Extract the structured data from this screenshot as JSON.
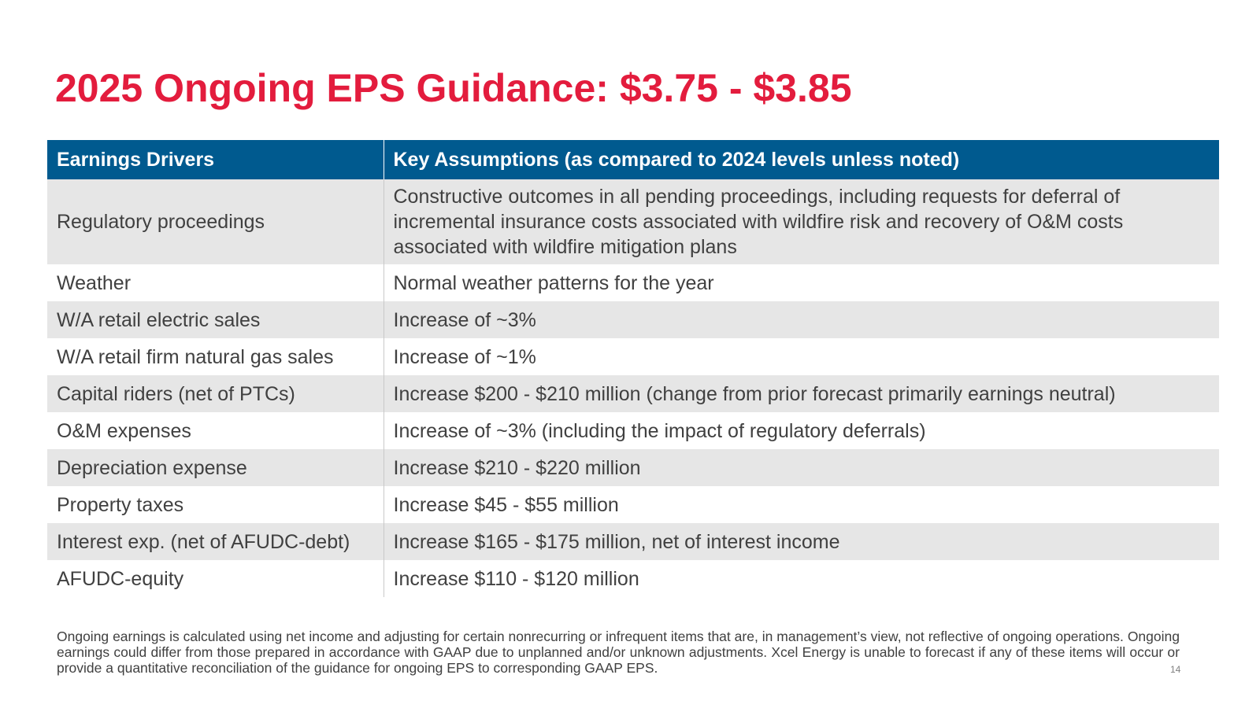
{
  "slide": {
    "title": "2025 Ongoing EPS Guidance: $3.75 - $3.85",
    "page_number": "14"
  },
  "table": {
    "headers": [
      "Earnings Drivers",
      "Key Assumptions (as compared to 2024 levels unless noted)"
    ],
    "rows": [
      {
        "driver": "Regulatory proceedings",
        "assumption": "Constructive outcomes in all pending proceedings, including requests for deferral of incremental insurance costs associated with wildfire risk and recovery of O&M costs associated with wildfire mitigation plans"
      },
      {
        "driver": "Weather",
        "assumption": "Normal weather patterns for the year"
      },
      {
        "driver": "W/A retail electric sales",
        "assumption": "Increase of ~3%"
      },
      {
        "driver": "W/A retail firm natural gas sales",
        "assumption": "Increase of ~1%"
      },
      {
        "driver": "Capital riders (net of PTCs)",
        "assumption": "Increase $200 - $210 million (change from prior forecast primarily earnings neutral)"
      },
      {
        "driver": "O&M expenses",
        "assumption": "Increase of ~3% (including the impact of regulatory deferrals)"
      },
      {
        "driver": "Depreciation expense",
        "assumption": "Increase $210 - $220 million"
      },
      {
        "driver": "Property taxes",
        "assumption": "Increase $45 - $55 million"
      },
      {
        "driver": "Interest exp. (net of AFUDC-debt)",
        "assumption": "Increase $165 - $175 million, net of interest income"
      },
      {
        "driver": "AFUDC-equity",
        "assumption": "Increase $110 - $120 million"
      }
    ]
  },
  "footnote": "Ongoing earnings is calculated using net income and adjusting for certain nonrecurring or infrequent items that are, in management’s view, not reflective of ongoing operations. Ongoing earnings could differ from those prepared in accordance with GAAP due to unplanned and/or unknown adjustments. Xcel Energy is unable to forecast if any of these items will occur or provide a quantitative reconciliation of the guidance for ongoing EPS to corresponding GAAP EPS.",
  "colors": {
    "title_red": "#e31c3d",
    "header_blue": "#005a8f",
    "band_gray": "#e6e6e6",
    "body_text": "#404040"
  }
}
